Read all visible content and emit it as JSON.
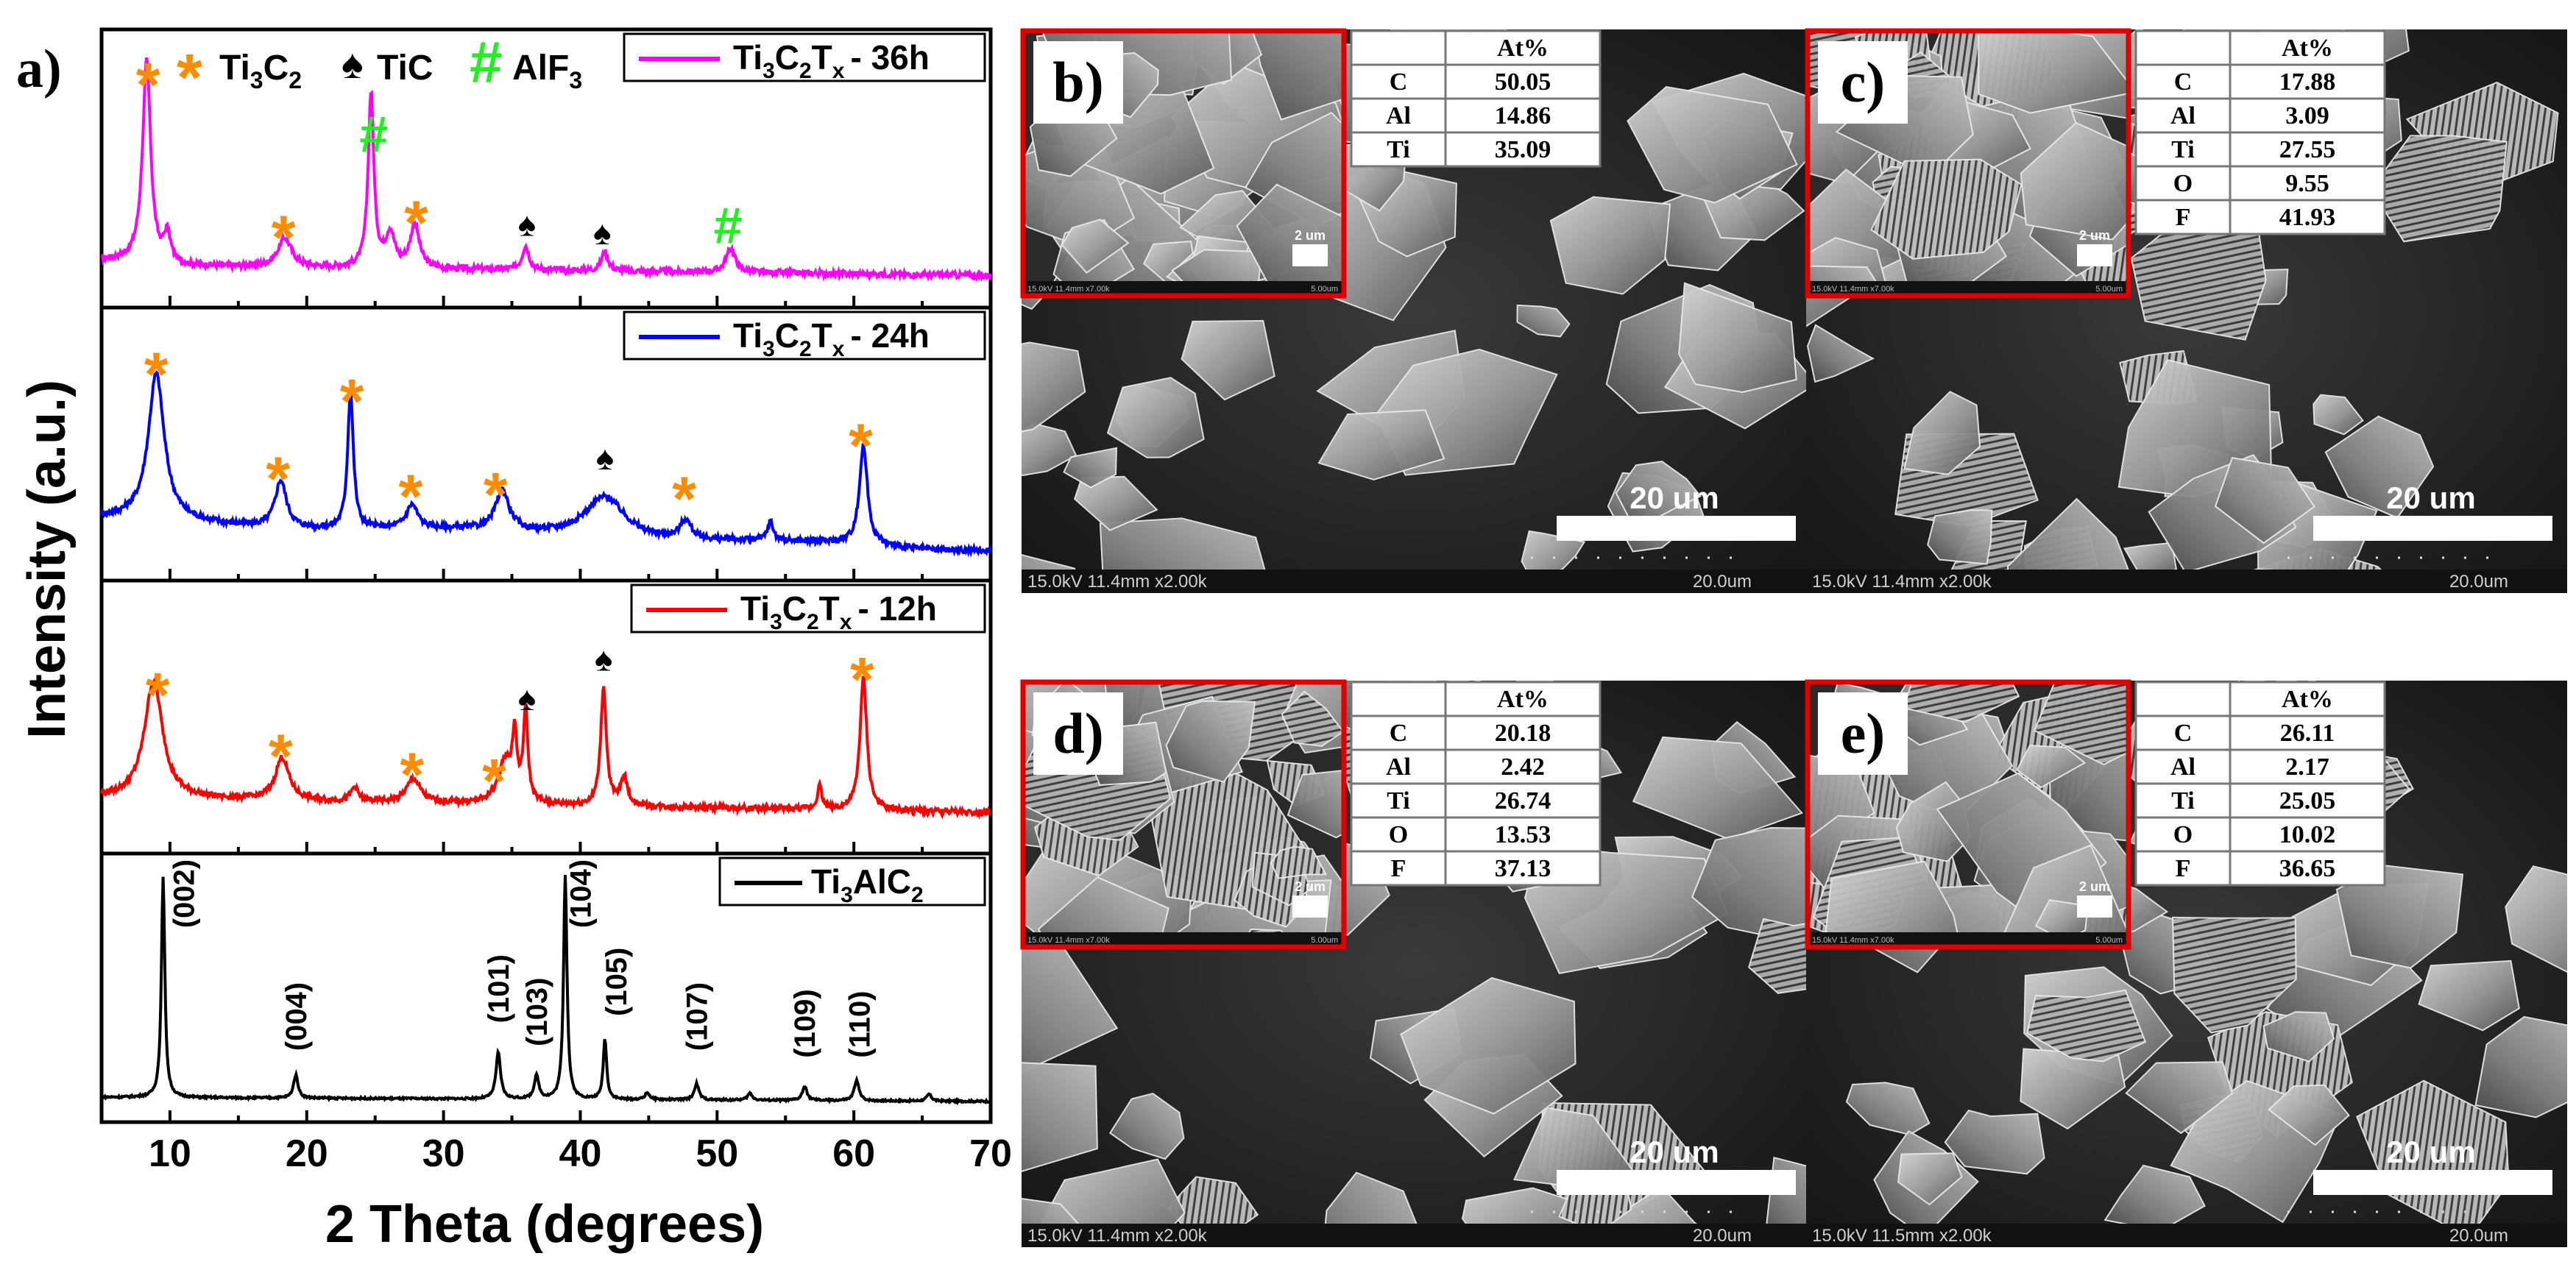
{
  "panel_a": {
    "label": "a)",
    "ylabel": "Intensity (a.u.)",
    "xlabel": "2 Theta (degrees)",
    "xlim": [
      5,
      70
    ],
    "xticks": [
      "10",
      "20",
      "30",
      "40",
      "50",
      "60",
      "70"
    ],
    "marker_legend": [
      {
        "symbol": "*",
        "label_main": "Ti",
        "sub1": "3",
        "mid": "C",
        "sub2": "2",
        "color": "#ff8c00"
      },
      {
        "symbol": "♠",
        "label_main": "TiC",
        "color": "#000000"
      },
      {
        "symbol": "#",
        "label_main": "AlF",
        "sub1": "3",
        "color": "#22ee22"
      }
    ]
  },
  "chart_data": {
    "type": "line",
    "xlabel": "2 Theta (degrees)",
    "ylabel": "Intensity (a.u.)",
    "xlim": [
      5,
      70
    ],
    "series": [
      {
        "name": "Ti3C2Tx - 36h",
        "color": "#ff00ff",
        "baseline": 0.12,
        "peaks": [
          [
            8.3,
            0.85,
            0.35
          ],
          [
            9.8,
            0.12,
            0.3
          ],
          [
            18.4,
            0.12,
            0.6
          ],
          [
            24.7,
            0.72,
            0.25
          ],
          [
            26.1,
            0.14,
            0.4
          ],
          [
            27.9,
            0.18,
            0.4
          ],
          [
            36.0,
            0.1,
            0.3
          ],
          [
            41.8,
            0.08,
            0.3
          ],
          [
            51.0,
            0.1,
            0.4
          ]
        ],
        "markers": [
          [
            "*",
            8.4
          ],
          [
            "*",
            18.3
          ],
          [
            "#",
            24.9
          ],
          [
            "*",
            28.0
          ],
          [
            "♠",
            36.1
          ],
          [
            "♠",
            41.6
          ],
          [
            "#",
            50.8
          ]
        ],
        "legend": {
          "main": "Ti",
          "s1": "3",
          "c": "C",
          "s2": "2",
          "t": "T",
          "sx": "x",
          "suffix": "- 36h"
        }
      },
      {
        "name": "Ti3C2Tx - 24h",
        "color": "#0000ff",
        "baseline": 0.2,
        "peaks": [
          [
            9.0,
            0.62,
            0.7
          ],
          [
            18.1,
            0.2,
            0.5
          ],
          [
            23.2,
            0.58,
            0.25
          ],
          [
            27.7,
            0.1,
            0.5
          ],
          [
            34.3,
            0.17,
            0.6
          ],
          [
            41.8,
            0.18,
            1.8
          ],
          [
            47.7,
            0.08,
            0.5
          ],
          [
            53.9,
            0.08,
            0.25
          ],
          [
            60.7,
            0.42,
            0.35
          ]
        ],
        "markers": [
          [
            "*",
            9.0
          ],
          [
            "*",
            17.9
          ],
          [
            "*",
            23.3
          ],
          [
            "*",
            27.6
          ],
          [
            "*",
            33.8
          ],
          [
            "♠",
            41.8
          ],
          [
            "*",
            47.6
          ],
          [
            "*",
            60.5
          ]
        ],
        "legend": {
          "main": "Ti",
          "s1": "3",
          "c": "C",
          "s2": "2",
          "t": "T",
          "sx": "x",
          "suffix": "- 24h"
        }
      },
      {
        "name": "Ti3C2Tx - 12h",
        "color": "#ff0000",
        "baseline": 0.18,
        "peaks": [
          [
            8.8,
            0.5,
            0.8
          ],
          [
            18.2,
            0.18,
            0.6
          ],
          [
            23.5,
            0.06,
            0.3
          ],
          [
            27.8,
            0.1,
            0.6
          ],
          [
            34.5,
            0.18,
            0.6
          ],
          [
            35.2,
            0.26,
            0.2
          ],
          [
            36.0,
            0.38,
            0.2
          ],
          [
            41.7,
            0.5,
            0.25
          ],
          [
            43.2,
            0.12,
            0.3
          ],
          [
            57.5,
            0.1,
            0.2
          ],
          [
            60.7,
            0.56,
            0.3
          ]
        ],
        "markers": [
          [
            "*",
            9.1
          ],
          [
            "*",
            18.1
          ],
          [
            "*",
            27.7
          ],
          [
            "*",
            33.7
          ],
          [
            "♠",
            36.1
          ],
          [
            "♠",
            41.7
          ],
          [
            "*",
            60.6
          ]
        ],
        "legend": {
          "main": "Ti",
          "s1": "3",
          "c": "C",
          "s2": "2",
          "t": "T",
          "sx": "x",
          "suffix": "- 12h"
        }
      },
      {
        "name": "Ti3AlC2",
        "color": "#000000",
        "baseline": 0.05,
        "peaks": [
          [
            9.5,
            0.95,
            0.15
          ],
          [
            19.2,
            0.1,
            0.2
          ],
          [
            34.0,
            0.2,
            0.2
          ],
          [
            36.8,
            0.1,
            0.2
          ],
          [
            38.9,
            0.97,
            0.15
          ],
          [
            41.8,
            0.26,
            0.15
          ],
          [
            44.9,
            0.03,
            0.2
          ],
          [
            48.5,
            0.07,
            0.2
          ],
          [
            52.4,
            0.03,
            0.2
          ],
          [
            56.4,
            0.06,
            0.2
          ],
          [
            60.2,
            0.09,
            0.2
          ],
          [
            65.5,
            0.03,
            0.2
          ]
        ],
        "hkl": [
          [
            "(002)",
            11.0,
            0.78
          ],
          [
            "(004)",
            19.2,
            0.25
          ],
          [
            "(101)",
            34.0,
            0.37
          ],
          [
            "(103)",
            36.8,
            0.27
          ],
          [
            "(104)",
            40.0,
            0.78
          ],
          [
            "(105)",
            42.6,
            0.4
          ],
          [
            "(107)",
            48.5,
            0.25
          ],
          [
            "(109)",
            56.4,
            0.22
          ],
          [
            "(110)",
            60.4,
            0.22
          ]
        ],
        "legend": {
          "main": "Ti",
          "s1": "3",
          "c": "AlC",
          "s2": "2",
          "suffix": ""
        }
      }
    ]
  },
  "sem_panels": [
    {
      "label": "b)",
      "scale_text": "20 um",
      "inset_scale": "2 um",
      "footer_left": "15.0kV 11.4mm x2.00k",
      "footer_right": "20.0um",
      "inset_footer": "15.0kV 11.4mm x7.00k",
      "inset_footer_right": "5.00um",
      "table": {
        "header": "At%",
        "rows": [
          [
            "C",
            "50.05"
          ],
          [
            "Al",
            "14.86"
          ],
          [
            "Ti",
            "35.09"
          ]
        ]
      }
    },
    {
      "label": "c)",
      "scale_text": "20 um",
      "inset_scale": "2 um",
      "footer_left": "15.0kV 11.4mm x2.00k",
      "footer_right": "20.0um",
      "inset_footer": "15.0kV 11.4mm x7.00k",
      "inset_footer_right": "5.00um",
      "table": {
        "header": "At%",
        "rows": [
          [
            "C",
            "17.88"
          ],
          [
            "Al",
            "3.09"
          ],
          [
            "Ti",
            "27.55"
          ],
          [
            "O",
            "9.55"
          ],
          [
            "F",
            "41.93"
          ]
        ]
      }
    },
    {
      "label": "d)",
      "scale_text": "20 um",
      "inset_scale": "2 um",
      "footer_left": "15.0kV 11.4mm x2.00k",
      "footer_right": "20.0um",
      "inset_footer": "15.0kV 11.4mm x7.00k",
      "inset_footer_right": "5.00um",
      "table": {
        "header": "At%",
        "rows": [
          [
            "C",
            "20.18"
          ],
          [
            "Al",
            "2.42"
          ],
          [
            "Ti",
            "26.74"
          ],
          [
            "O",
            "13.53"
          ],
          [
            "F",
            "37.13"
          ]
        ]
      }
    },
    {
      "label": "e)",
      "scale_text": "20 um",
      "inset_scale": "2 um",
      "footer_left": "15.0kV 11.5mm x2.00k",
      "footer_right": "20.0um",
      "inset_footer": "15.0kV 11.4mm x7.00k",
      "inset_footer_right": "5.00um",
      "table": {
        "header": "At%",
        "rows": [
          [
            "C",
            "26.11"
          ],
          [
            "Al",
            "2.17"
          ],
          [
            "Ti",
            "25.05"
          ],
          [
            "O",
            "10.02"
          ],
          [
            "F",
            "36.65"
          ]
        ]
      }
    }
  ]
}
